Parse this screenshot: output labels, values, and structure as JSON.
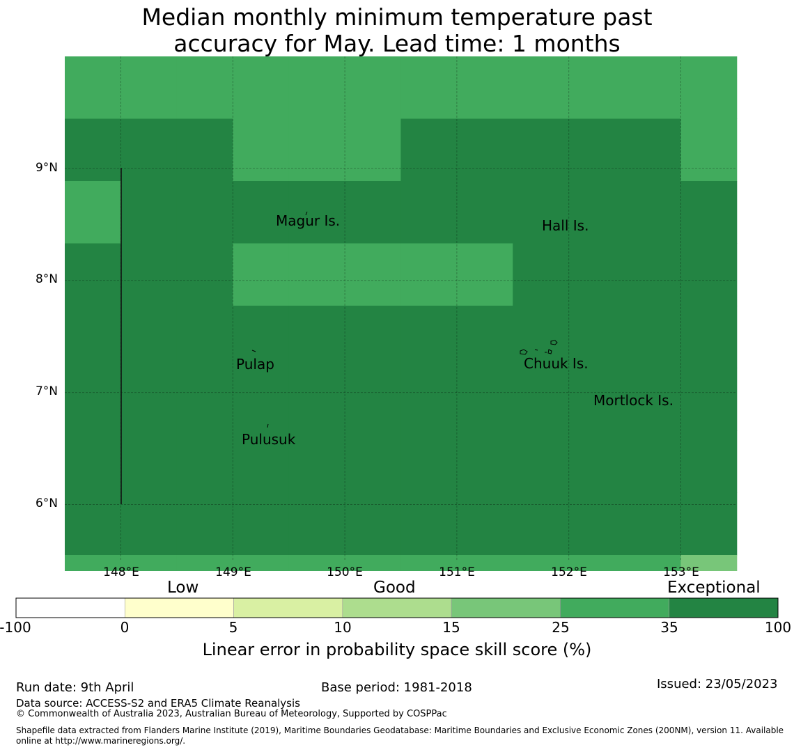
{
  "title": {
    "line1": "Median monthly minimum temperature past",
    "line2": "accuracy for May. Lead time: 1 months"
  },
  "map": {
    "lon_range": [
      147.5,
      153.5
    ],
    "lat_range": [
      5.5,
      10.0
    ],
    "grid_step_deg": 0.83,
    "cell_score_bands": [
      "25-35",
      "25-35",
      "25-35",
      "25-35",
      "25-35",
      "25-35",
      "25-35",
      "25-35",
      "25-35",
      "25-35",
      "25-35",
      "25-35",
      "35-100",
      "35-100",
      "35-100",
      "25-35",
      "25-35",
      "25-35",
      "35-100",
      "35-100",
      "35-100",
      "35-100",
      "35-100",
      "25-35",
      "25-35",
      "35-100",
      "35-100",
      "35-100",
      "35-100",
      "35-100",
      "35-100",
      "35-100",
      "35-100",
      "35-100",
      "35-100",
      "35-100",
      "35-100",
      "35-100",
      "35-100",
      "25-35",
      "25-35",
      "25-35",
      "25-35",
      "25-35",
      "35-100",
      "35-100",
      "35-100",
      "35-100",
      "35-100",
      "35-100",
      "35-100",
      "35-100",
      "35-100",
      "35-100",
      "35-100",
      "35-100",
      "35-100",
      "35-100",
      "35-100",
      "35-100",
      "35-100",
      "35-100",
      "35-100",
      "35-100",
      "35-100",
      "35-100",
      "35-100",
      "35-100",
      "35-100",
      "35-100",
      "35-100",
      "35-100",
      "35-100",
      "35-100",
      "35-100",
      "35-100",
      "35-100",
      "35-100",
      "35-100",
      "35-100",
      "35-100",
      "35-100",
      "35-100",
      "35-100",
      "35-100",
      "35-100",
      "35-100",
      "35-100",
      "35-100",
      "35-100",
      "35-100",
      "35-100",
      "35-100",
      "35-100",
      "35-100",
      "35-100",
      "25-35",
      "25-35",
      "25-35",
      "25-35",
      "25-35",
      "25-35",
      "25-35",
      "25-35",
      "25-35",
      "25-35",
      "25-35",
      "15-25"
    ],
    "lon_ticks": [
      {
        "value": 148,
        "label": "148°E"
      },
      {
        "value": 149,
        "label": "149°E"
      },
      {
        "value": 150,
        "label": "150°E"
      },
      {
        "value": 151,
        "label": "151°E"
      },
      {
        "value": 152,
        "label": "152°E"
      },
      {
        "value": 153,
        "label": "153°E"
      }
    ],
    "lat_ticks": [
      {
        "value": 9,
        "label": "9°N"
      },
      {
        "value": 8,
        "label": "8°N"
      },
      {
        "value": 7,
        "label": "7°N"
      },
      {
        "value": 6,
        "label": "6°N"
      }
    ],
    "places": [
      {
        "name": "Magur Is."
      },
      {
        "name": "Hall Is."
      },
      {
        "name": "Pulap"
      },
      {
        "name": "Chuuk Is."
      },
      {
        "name": "Mortlock Is."
      },
      {
        "name": "Pulusuk"
      }
    ]
  },
  "colorbar": {
    "categories": [
      "Low",
      "Good",
      "Exceptional"
    ],
    "colors": [
      "#ffffff",
      "#ffffcc",
      "#d9f0a3",
      "#addd8e",
      "#78c679",
      "#41ab5d",
      "#238443"
    ],
    "ticks": [
      "-100",
      "0",
      "5",
      "10",
      "15",
      "25",
      "35",
      "100"
    ],
    "title": "Linear error in probability space skill score (%)"
  },
  "footer": {
    "run_date": "Run date: 9th April",
    "base_period": "Base period: 1981-2018",
    "issued": "Issued: 23/05/2023",
    "data_source": "Data source: ACCESS-S2 and ERA5 Climate Reanalysis",
    "copyright": "© Commonwealth of Australia 2023, Australian Bureau of Meteorology, Supported by COSPPac",
    "shapefile_line1": "Shapefile data extracted from Flanders Marine Institute (2019), Maritime Boundaries Geodatabase: Maritime Boundaries and Exclusive Economic Zones (200NM), version 11. Available",
    "shapefile_line2": "online at http://www.marineregions.org/."
  }
}
